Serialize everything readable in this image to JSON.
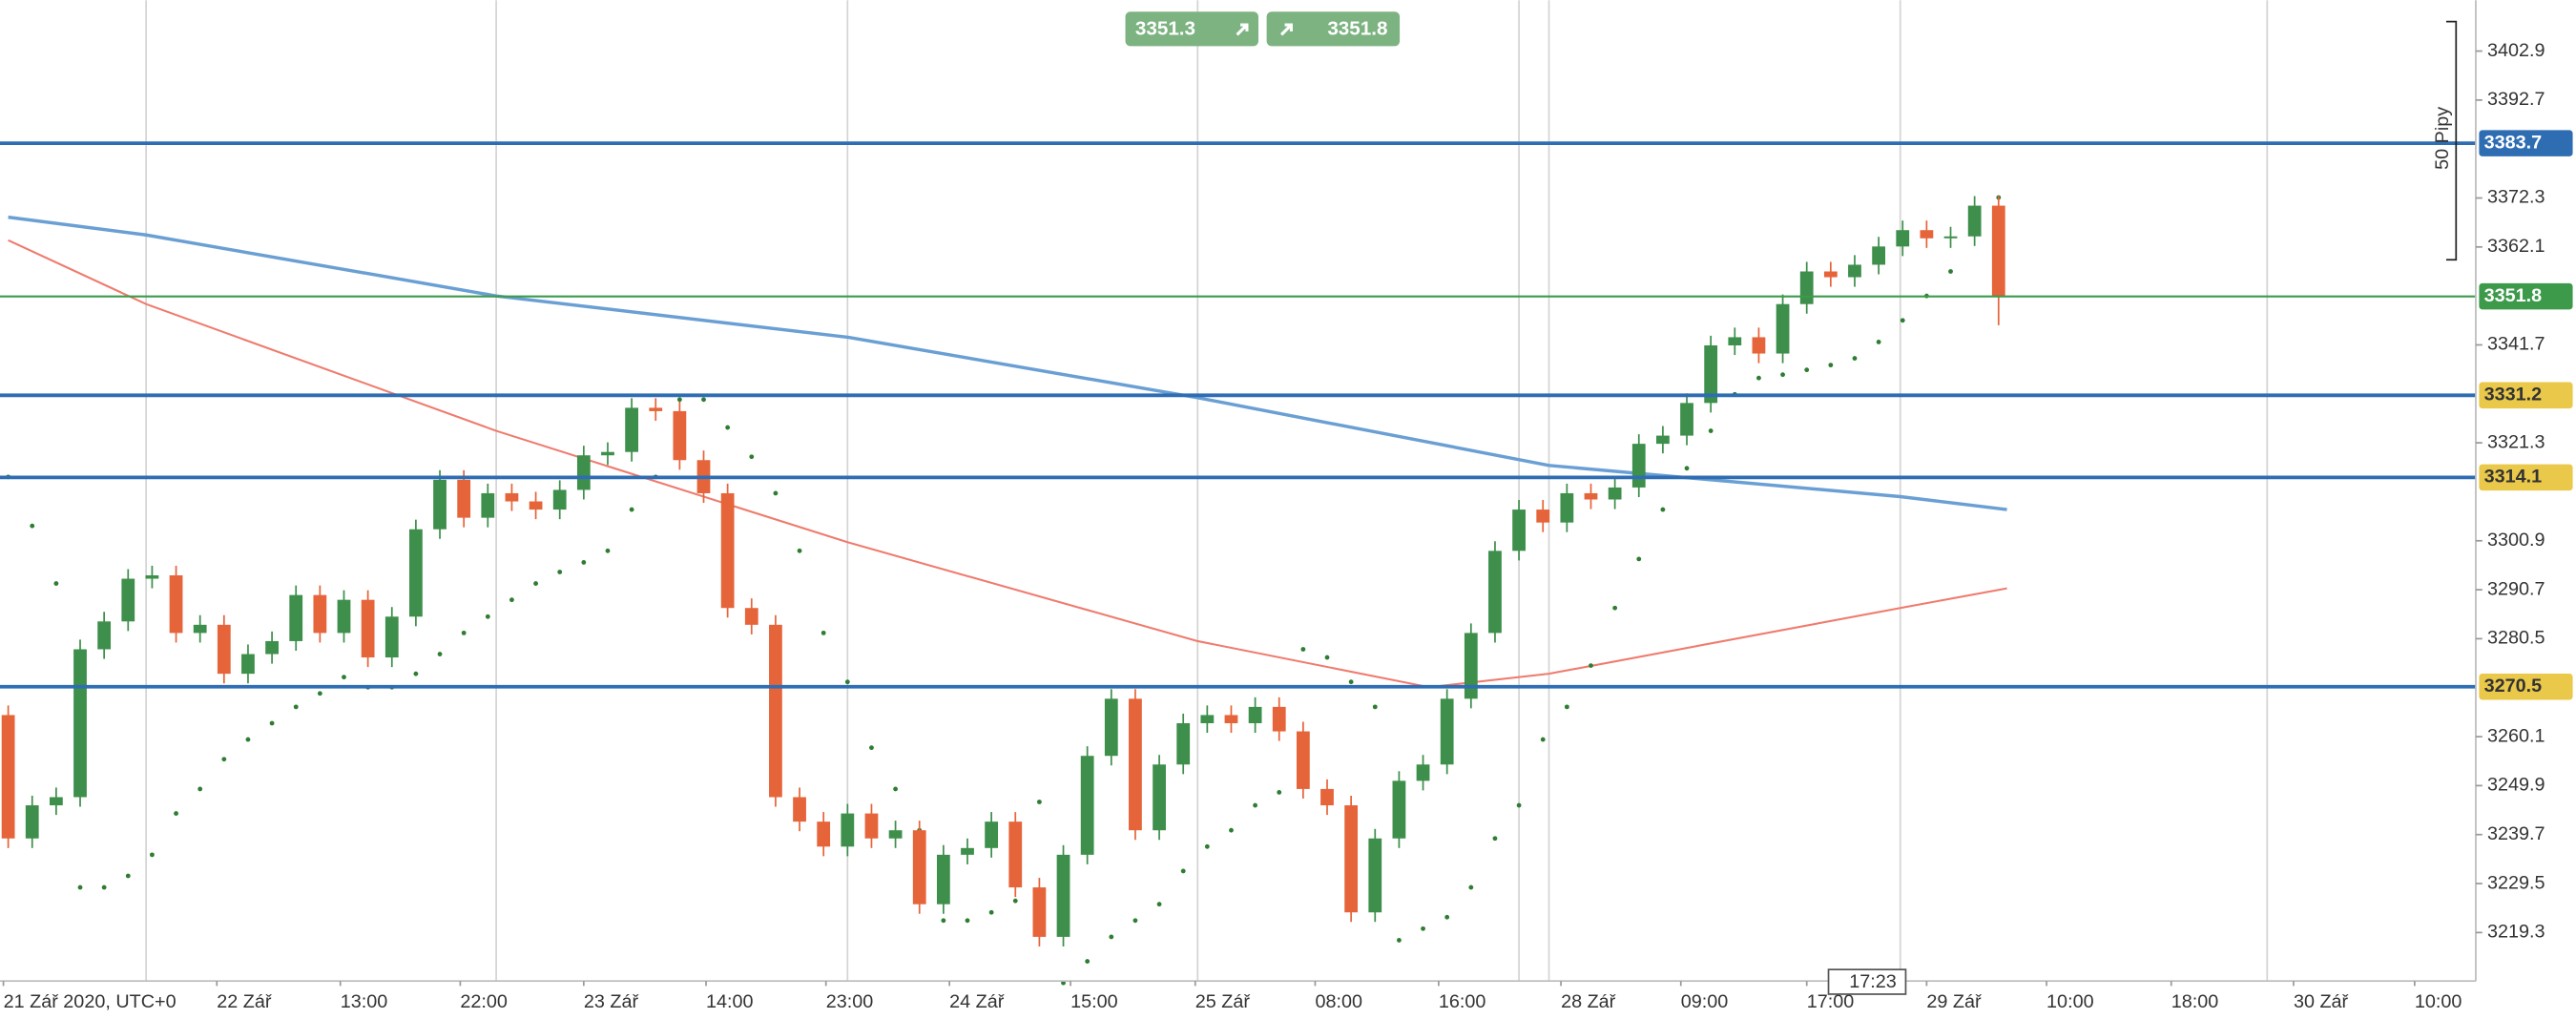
{
  "chart_data": {
    "type": "candlestick",
    "x": [
      0,
      2,
      4,
      6,
      8,
      10,
      12,
      14,
      16,
      18,
      20,
      22,
      24,
      26,
      28,
      30,
      32,
      34,
      36,
      38,
      40,
      42,
      44,
      46,
      48,
      50,
      52,
      54,
      56,
      58,
      60,
      62,
      64,
      66,
      68,
      70,
      72,
      74,
      76,
      78,
      80,
      82,
      84,
      86,
      88,
      90,
      92,
      94,
      96,
      98,
      100,
      102,
      104,
      106,
      108,
      110,
      112,
      114,
      116,
      118,
      120,
      122,
      124,
      126,
      128,
      130,
      132,
      134,
      136,
      138,
      140,
      142,
      144,
      146,
      148,
      150,
      152,
      154,
      156,
      158,
      160,
      162,
      164,
      166
    ],
    "open": [
      3264.6,
      3238.9,
      3245.8,
      3247.5,
      3278.3,
      3284.1,
      3293.0,
      3293.7,
      3281.7,
      3283.4,
      3273.2,
      3277.3,
      3280.0,
      3289.6,
      3281.7,
      3288.6,
      3276.6,
      3285.1,
      3303.3,
      3313.6,
      3305.7,
      3310.8,
      3309.1,
      3307.4,
      3311.5,
      3318.7,
      3319.4,
      3328.6,
      3327.9,
      3317.7,
      3310.8,
      3286.9,
      3283.4,
      3247.5,
      3242.4,
      3237.2,
      3244.1,
      3238.9,
      3240.6,
      3225.2,
      3235.5,
      3236.9,
      3242.4,
      3228.7,
      3218.4,
      3235.5,
      3256.1,
      3268.0,
      3240.6,
      3254.3,
      3262.9,
      3264.6,
      3262.9,
      3266.3,
      3261.2,
      3249.2,
      3245.8,
      3223.5,
      3238.9,
      3250.9,
      3254.3,
      3268.0,
      3281.7,
      3298.8,
      3307.4,
      3304.7,
      3310.8,
      3309.5,
      3312.0,
      3321.1,
      3322.8,
      3329.6,
      3341.6,
      3343.3,
      3339.9,
      3350.2,
      3357.0,
      3355.8,
      3358.4,
      3362.2,
      3365.6,
      3363.9,
      3364.3,
      3370.7
    ],
    "high": [
      3266.6,
      3247.8,
      3249.5,
      3280.3,
      3286.1,
      3295.0,
      3295.7,
      3295.7,
      3285.4,
      3285.4,
      3279.3,
      3282.0,
      3291.6,
      3291.6,
      3290.6,
      3290.6,
      3287.1,
      3305.3,
      3315.6,
      3315.6,
      3312.8,
      3312.8,
      3311.1,
      3313.5,
      3320.7,
      3321.4,
      3330.6,
      3330.6,
      3329.9,
      3319.7,
      3312.8,
      3288.9,
      3285.4,
      3249.5,
      3244.4,
      3246.1,
      3246.1,
      3242.6,
      3242.6,
      3237.5,
      3238.9,
      3244.4,
      3244.4,
      3230.7,
      3237.5,
      3258.1,
      3270.0,
      3270.0,
      3256.3,
      3264.9,
      3266.6,
      3266.6,
      3268.3,
      3268.3,
      3263.2,
      3251.2,
      3247.8,
      3240.9,
      3252.9,
      3256.3,
      3270.0,
      3283.7,
      3300.8,
      3309.4,
      3309.4,
      3312.8,
      3312.8,
      3314.0,
      3323.1,
      3324.8,
      3331.6,
      3343.6,
      3345.3,
      3345.3,
      3352.2,
      3359.0,
      3359.0,
      3360.4,
      3364.2,
      3367.6,
      3367.6,
      3366.3,
      3372.7,
      3372.7
    ],
    "low": [
      3236.9,
      3236.9,
      3243.8,
      3245.5,
      3276.3,
      3282.1,
      3291.0,
      3279.7,
      3279.7,
      3271.2,
      3271.2,
      3275.3,
      3278.0,
      3279.7,
      3279.7,
      3274.6,
      3274.6,
      3283.1,
      3301.3,
      3303.7,
      3303.7,
      3307.1,
      3305.4,
      3305.4,
      3309.5,
      3316.7,
      3317.4,
      3325.9,
      3315.7,
      3308.8,
      3284.9,
      3281.4,
      3245.5,
      3240.4,
      3235.2,
      3235.2,
      3236.9,
      3236.9,
      3223.2,
      3223.2,
      3233.5,
      3234.9,
      3226.7,
      3216.4,
      3216.4,
      3233.5,
      3254.1,
      3238.6,
      3238.6,
      3252.3,
      3260.9,
      3260.9,
      3260.9,
      3259.2,
      3247.2,
      3243.8,
      3221.5,
      3221.5,
      3236.9,
      3248.9,
      3252.3,
      3266.0,
      3279.7,
      3296.8,
      3302.7,
      3302.7,
      3307.5,
      3307.5,
      3310.0,
      3319.1,
      3320.8,
      3327.6,
      3339.6,
      3337.9,
      3337.9,
      3348.2,
      3353.8,
      3353.8,
      3356.4,
      3360.2,
      3361.9,
      3361.9,
      3362.3,
      3345.8
    ],
    "close": [
      3238.9,
      3245.8,
      3247.5,
      3278.3,
      3284.1,
      3293.0,
      3293.7,
      3281.7,
      3283.4,
      3273.2,
      3277.3,
      3280.0,
      3289.6,
      3281.7,
      3288.6,
      3276.6,
      3285.1,
      3303.3,
      3313.6,
      3305.7,
      3310.8,
      3309.1,
      3307.4,
      3311.5,
      3318.7,
      3319.4,
      3328.6,
      3327.9,
      3317.7,
      3310.8,
      3286.9,
      3283.4,
      3247.5,
      3242.4,
      3237.2,
      3244.1,
      3238.9,
      3240.6,
      3225.2,
      3235.5,
      3236.9,
      3242.4,
      3228.7,
      3218.4,
      3235.5,
      3256.1,
      3268.0,
      3240.6,
      3254.3,
      3262.9,
      3264.6,
      3262.9,
      3266.3,
      3261.2,
      3249.2,
      3245.8,
      3223.5,
      3238.9,
      3250.9,
      3254.3,
      3268.0,
      3281.7,
      3298.8,
      3307.4,
      3304.7,
      3310.8,
      3309.5,
      3312.0,
      3321.1,
      3322.8,
      3329.6,
      3341.6,
      3343.3,
      3339.9,
      3350.2,
      3357.0,
      3355.8,
      3358.4,
      3362.2,
      3365.6,
      3363.9,
      3364.3,
      3370.7,
      3351.8
    ],
    "up_color": "#3d8f4b",
    "down_color": "#e6643a",
    "sar": {
      "color": "#2e7d32",
      "values": [
        3314.2,
        3304.0,
        3292.0,
        3228.7,
        3228.7,
        3231.1,
        3235.5,
        3244.1,
        3249.2,
        3255.4,
        3259.5,
        3262.9,
        3266.3,
        3269.1,
        3272.5,
        3270.4,
        3270.4,
        3273.2,
        3277.3,
        3281.7,
        3285.1,
        3288.6,
        3292.0,
        3294.4,
        3296.4,
        3298.8,
        3307.4,
        3314.2,
        3330.3,
        3330.3,
        3324.5,
        3318.4,
        3310.8,
        3298.8,
        3281.7,
        3271.5,
        3257.8,
        3249.2,
        3240.6,
        3221.8,
        3221.8,
        3223.5,
        3225.9,
        3246.5,
        3208.8,
        3213.3,
        3218.4,
        3221.8,
        3225.2,
        3232.1,
        3237.2,
        3240.6,
        3245.8,
        3248.5,
        3278.3,
        3276.6,
        3271.5,
        3266.3,
        3217.7,
        3220.1,
        3222.5,
        3228.7,
        3238.9,
        3245.8,
        3259.5,
        3266.3,
        3274.9,
        3286.9,
        3297.1,
        3307.4,
        3316.0,
        3323.8,
        3331.4,
        3334.8,
        3335.5,
        3336.5,
        3337.5,
        3338.9,
        3342.3,
        3346.8,
        3351.9,
        3357.0,
        3365.6,
        3372.4
      ]
    },
    "lines": [
      {
        "color": "#6a9fd4",
        "x": [
          0,
          11.5,
          40.7,
          70,
          99.2,
          128.5,
          157.8,
          166.7
        ],
        "values": [
          3368.3,
          3364.6,
          3351.9,
          3343.3,
          3330.7,
          3316.6,
          3310.1,
          3307.4
        ]
      },
      {
        "color": "#ef7b6e",
        "x": [
          0,
          11.5,
          40.7,
          70,
          99.2,
          118.5,
          128.5,
          157.8,
          166.7
        ],
        "values": [
          3363.5,
          3350.2,
          3323.8,
          3300.6,
          3280.0,
          3270.4,
          3273.2,
          3286.9,
          3291.0
        ]
      }
    ],
    "levels": [
      {
        "value": 3383.7,
        "color": "#2f6db3",
        "label_color": "#2f6db3",
        "text_color": "#ffffff"
      },
      {
        "value": 3351.8,
        "color": "#3d9a4b",
        "label_color": "#3d9a4b",
        "text_color": "#ffffff"
      },
      {
        "value": 3331.2,
        "color": "#2f6db3",
        "label_color": "#e9c84a",
        "text_color": "#333333"
      },
      {
        "value": 3314.1,
        "color": "#2f6db3",
        "label_color": "#e9c84a",
        "text_color": "#333333"
      },
      {
        "value": 3270.5,
        "color": "#2f6db3",
        "label_color": "#e9c84a",
        "text_color": "#333333"
      }
    ],
    "xlim": [
      -0.685,
      205.8
    ],
    "ylim": [
      3209.2,
      3413.5
    ],
    "yticks": [
      3402.9,
      3392.7,
      3372.3,
      3362.1,
      3341.7,
      3321.3,
      3300.9,
      3290.7,
      3280.5,
      3260.1,
      3249.9,
      3239.7,
      3229.5,
      3219.3
    ],
    "xgrid": [
      11.5,
      40.7,
      70,
      99.2,
      126,
      128.5,
      157.8,
      188.4
    ],
    "xticks": [
      {
        "value": -0.4,
        "label": "21 Zář 2020, UTC+0"
      },
      {
        "value": 17.4,
        "label": "22 Zář"
      },
      {
        "value": 27.7,
        "label": "13:00"
      },
      {
        "value": 37.7,
        "label": "22:00"
      },
      {
        "value": 48,
        "label": "23 Zář"
      },
      {
        "value": 58.2,
        "label": "14:00"
      },
      {
        "value": 68.2,
        "label": "23:00"
      },
      {
        "value": 78.5,
        "label": "24 Zář"
      },
      {
        "value": 88.6,
        "label": "15:00"
      },
      {
        "value": 99,
        "label": "25 Zář"
      },
      {
        "value": 109,
        "label": "08:00"
      },
      {
        "value": 119.3,
        "label": "16:00"
      },
      {
        "value": 129.5,
        "label": "28 Zář"
      },
      {
        "value": 139.5,
        "label": "09:00"
      },
      {
        "value": 150,
        "label": "17:00"
      },
      {
        "value": 160,
        "label": "29 Zář"
      },
      {
        "value": 170,
        "label": "10:00"
      },
      {
        "value": 180.4,
        "label": "18:00"
      },
      {
        "value": 190.6,
        "label": "30 Zář"
      },
      {
        "value": 200.7,
        "label": "10:00"
      }
    ],
    "sell_price": "3351.3",
    "buy_price": "3351.8",
    "ruler_label": "50 Pipy",
    "cursor_time": "17:23"
  }
}
